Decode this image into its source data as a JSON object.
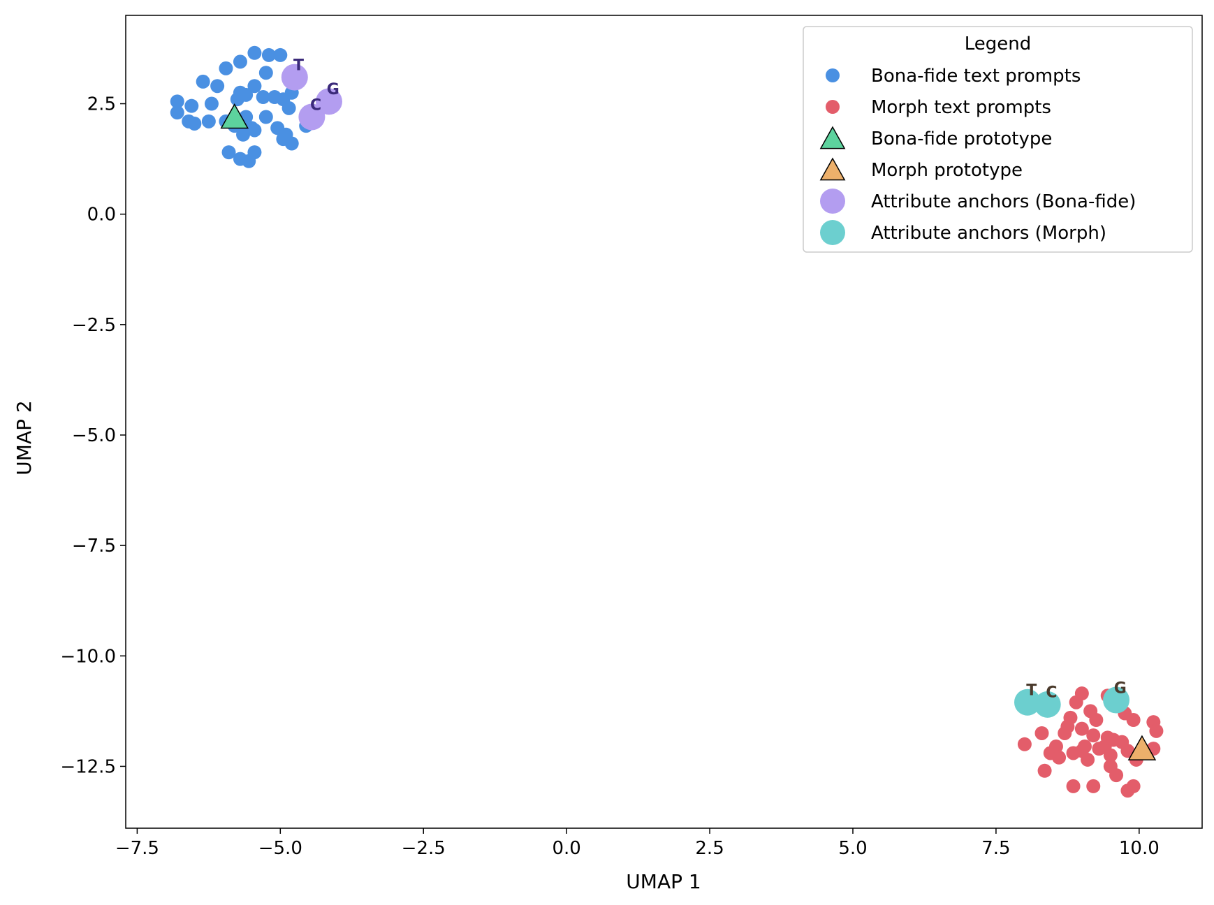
{
  "chart_data": {
    "type": "scatter",
    "xlabel": "UMAP 1",
    "ylabel": "UMAP 2",
    "xlim": [
      -7.7,
      11.1
    ],
    "ylim": [
      -13.9,
      4.5
    ],
    "xticks": [
      -7.5,
      -5.0,
      -2.5,
      0.0,
      2.5,
      5.0,
      7.5,
      10.0
    ],
    "xtick_labels": [
      "−7.5",
      "−5.0",
      "−2.5",
      "0.0",
      "2.5",
      "5.0",
      "7.5",
      "10.0"
    ],
    "yticks": [
      2.5,
      0.0,
      -2.5,
      -5.0,
      -7.5,
      -10.0,
      -12.5
    ],
    "ytick_labels": [
      "2.5",
      "0.0",
      "−2.5",
      "−5.0",
      "−7.5",
      "−10.0",
      "−12.5"
    ],
    "grid": false,
    "legend": {
      "title": "Legend",
      "position": "top-right",
      "entries": [
        {
          "label": "Bona-fide text prompts",
          "marker": "circle",
          "color": "#4A90E2"
        },
        {
          "label": "Morph text prompts",
          "marker": "circle",
          "color": "#E35D6A"
        },
        {
          "label": "Bona-fide prototype",
          "marker": "triangle",
          "color": "#5DD39E"
        },
        {
          "label": "Morph prototype",
          "marker": "triangle",
          "color": "#EDB06B"
        },
        {
          "label": "Attribute anchors (Bona-fide)",
          "marker": "circle-large",
          "color": "#B39DF0"
        },
        {
          "label": "Attribute anchors (Morph)",
          "marker": "circle-large",
          "color": "#6CCFCF"
        }
      ]
    },
    "series": [
      {
        "name": "Bona-fide text prompts",
        "color": "#4A90E2",
        "points": [
          [
            -6.8,
            2.55
          ],
          [
            -6.8,
            2.3
          ],
          [
            -6.6,
            2.1
          ],
          [
            -6.55,
            2.45
          ],
          [
            -6.5,
            2.05
          ],
          [
            -6.35,
            3.0
          ],
          [
            -6.25,
            2.1
          ],
          [
            -6.2,
            2.5
          ],
          [
            -6.1,
            2.9
          ],
          [
            -5.95,
            3.3
          ],
          [
            -5.95,
            2.1
          ],
          [
            -5.9,
            1.4
          ],
          [
            -5.8,
            2.0
          ],
          [
            -5.75,
            2.6
          ],
          [
            -5.7,
            3.45
          ],
          [
            -5.7,
            2.75
          ],
          [
            -5.7,
            1.25
          ],
          [
            -5.65,
            1.8
          ],
          [
            -5.6,
            2.2
          ],
          [
            -5.6,
            2.7
          ],
          [
            -5.55,
            1.2
          ],
          [
            -5.5,
            1.95
          ],
          [
            -5.45,
            1.4
          ],
          [
            -5.45,
            1.9
          ],
          [
            -5.45,
            2.9
          ],
          [
            -5.45,
            3.65
          ],
          [
            -5.3,
            2.65
          ],
          [
            -5.25,
            3.2
          ],
          [
            -5.25,
            2.2
          ],
          [
            -5.2,
            3.6
          ],
          [
            -5.1,
            2.65
          ],
          [
            -5.05,
            1.95
          ],
          [
            -5.0,
            3.6
          ],
          [
            -4.95,
            1.7
          ],
          [
            -4.95,
            2.6
          ],
          [
            -4.9,
            1.8
          ],
          [
            -4.85,
            2.4
          ],
          [
            -4.8,
            2.75
          ],
          [
            -4.8,
            1.6
          ],
          [
            -4.55,
            2.0
          ]
        ]
      },
      {
        "name": "Morph text prompts",
        "color": "#E35D6A",
        "points": [
          [
            8.0,
            -12.0
          ],
          [
            8.3,
            -11.75
          ],
          [
            8.35,
            -12.6
          ],
          [
            8.45,
            -12.2
          ],
          [
            8.55,
            -12.05
          ],
          [
            8.6,
            -12.3
          ],
          [
            8.7,
            -11.75
          ],
          [
            8.75,
            -11.6
          ],
          [
            8.8,
            -11.4
          ],
          [
            8.85,
            -12.2
          ],
          [
            8.85,
            -12.95
          ],
          [
            8.9,
            -11.05
          ],
          [
            9.0,
            -12.15
          ],
          [
            9.0,
            -11.65
          ],
          [
            9.0,
            -10.85
          ],
          [
            9.05,
            -12.05
          ],
          [
            9.1,
            -12.35
          ],
          [
            9.15,
            -11.25
          ],
          [
            9.2,
            -11.8
          ],
          [
            9.2,
            -12.95
          ],
          [
            9.25,
            -11.45
          ],
          [
            9.3,
            -12.1
          ],
          [
            9.4,
            -12.05
          ],
          [
            9.45,
            -10.9
          ],
          [
            9.45,
            -11.85
          ],
          [
            9.5,
            -12.25
          ],
          [
            9.5,
            -12.5
          ],
          [
            9.55,
            -11.9
          ],
          [
            9.6,
            -12.7
          ],
          [
            9.7,
            -11.95
          ],
          [
            9.75,
            -11.3
          ],
          [
            9.8,
            -12.15
          ],
          [
            9.8,
            -13.05
          ],
          [
            9.9,
            -12.95
          ],
          [
            9.9,
            -11.45
          ],
          [
            9.95,
            -12.35
          ],
          [
            10.25,
            -11.5
          ],
          [
            10.25,
            -12.1
          ],
          [
            10.3,
            -11.7
          ]
        ]
      }
    ],
    "prototypes": [
      {
        "name": "Bona-fide prototype",
        "x": -5.8,
        "y": 2.2,
        "color": "#5DD39E"
      },
      {
        "name": "Morph prototype",
        "x": 10.05,
        "y": -12.1,
        "color": "#EDB06B"
      }
    ],
    "anchors": [
      {
        "group": "Attribute anchors (Bona-fide)",
        "label": "T",
        "x": -4.75,
        "y": 3.1,
        "color": "#B39DF0",
        "text_color": "#3B2A7A",
        "dx": 0.07,
        "dy": 0.16
      },
      {
        "group": "Attribute anchors (Bona-fide)",
        "label": "C",
        "x": -4.45,
        "y": 2.2,
        "color": "#B39DF0",
        "text_color": "#3B2A7A",
        "dx": 0.07,
        "dy": 0.16
      },
      {
        "group": "Attribute anchors (Bona-fide)",
        "label": "G",
        "x": -4.15,
        "y": 2.55,
        "color": "#B39DF0",
        "text_color": "#3B2A7A",
        "dx": 0.07,
        "dy": 0.16
      },
      {
        "group": "Attribute anchors (Morph)",
        "label": "T",
        "x": 8.05,
        "y": -11.05,
        "color": "#6CCFCF",
        "text_color": "#4A3A2C",
        "dx": 0.07,
        "dy": 0.16
      },
      {
        "group": "Attribute anchors (Morph)",
        "label": "C",
        "x": 8.4,
        "y": -11.1,
        "color": "#6CCFCF",
        "text_color": "#4A3A2C",
        "dx": 0.07,
        "dy": 0.16
      },
      {
        "group": "Attribute anchors (Morph)",
        "label": "G",
        "x": 9.6,
        "y": -11.0,
        "color": "#6CCFCF",
        "text_color": "#4A3A2C",
        "dx": 0.07,
        "dy": 0.16
      }
    ]
  }
}
